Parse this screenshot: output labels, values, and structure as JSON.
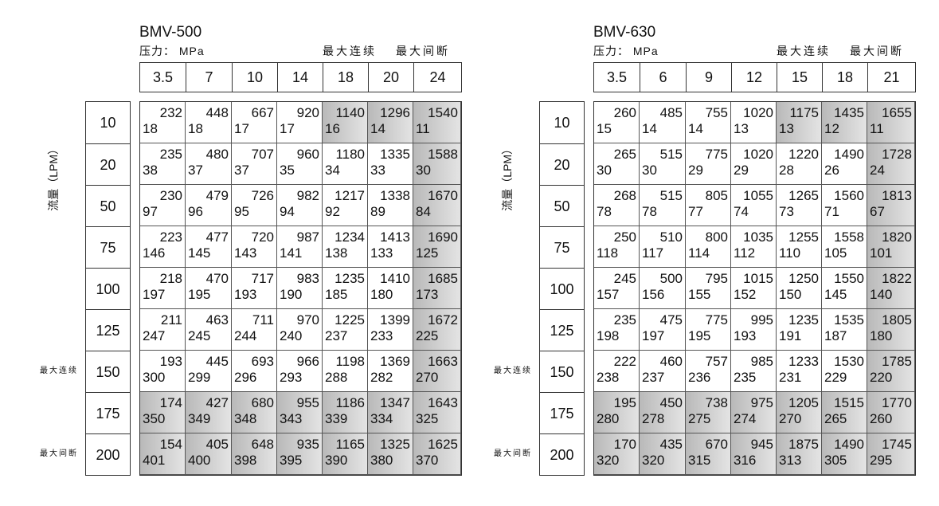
{
  "flow_axis_label": "流量（LPM）",
  "max_continuous_label": "最大连续",
  "max_intermittent_label": "最大间断",
  "tables": [
    {
      "model": "BMV-500",
      "pressure_label": "压力： MPa",
      "pressures": [
        "3.5",
        "7",
        "10",
        "14",
        "18",
        "20",
        "24"
      ],
      "flows": [
        "10",
        "20",
        "50",
        "75",
        "100",
        "125",
        "150",
        "175",
        "200"
      ],
      "cells": [
        [
          [
            "232",
            "18"
          ],
          [
            "448",
            "18"
          ],
          [
            "667",
            "17"
          ],
          [
            "920",
            "17"
          ],
          [
            "1140",
            "16"
          ],
          [
            "1296",
            "14"
          ],
          [
            "1540",
            "11"
          ]
        ],
        [
          [
            "235",
            "38"
          ],
          [
            "480",
            "37"
          ],
          [
            "707",
            "37"
          ],
          [
            "960",
            "35"
          ],
          [
            "1180",
            "34"
          ],
          [
            "1335",
            "33"
          ],
          [
            "1588",
            "30"
          ]
        ],
        [
          [
            "230",
            "97"
          ],
          [
            "479",
            "96"
          ],
          [
            "726",
            "95"
          ],
          [
            "982",
            "94"
          ],
          [
            "1217",
            "92"
          ],
          [
            "1338",
            "89"
          ],
          [
            "1670",
            "84"
          ]
        ],
        [
          [
            "223",
            "146"
          ],
          [
            "477",
            "145"
          ],
          [
            "720",
            "143"
          ],
          [
            "987",
            "141"
          ],
          [
            "1234",
            "138"
          ],
          [
            "1413",
            "133"
          ],
          [
            "1690",
            "125"
          ]
        ],
        [
          [
            "218",
            "197"
          ],
          [
            "470",
            "195"
          ],
          [
            "717",
            "193"
          ],
          [
            "983",
            "190"
          ],
          [
            "1235",
            "185"
          ],
          [
            "1410",
            "180"
          ],
          [
            "1685",
            "173"
          ]
        ],
        [
          [
            "211",
            "247"
          ],
          [
            "463",
            "245"
          ],
          [
            "711",
            "244"
          ],
          [
            "970",
            "240"
          ],
          [
            "1225",
            "237"
          ],
          [
            "1399",
            "233"
          ],
          [
            "1672",
            "225"
          ]
        ],
        [
          [
            "193",
            "300"
          ],
          [
            "445",
            "299"
          ],
          [
            "693",
            "296"
          ],
          [
            "966",
            "293"
          ],
          [
            "1198",
            "288"
          ],
          [
            "1369",
            "282"
          ],
          [
            "1663",
            "270"
          ]
        ],
        [
          [
            "174",
            "350"
          ],
          [
            "427",
            "349"
          ],
          [
            "680",
            "348"
          ],
          [
            "955",
            "343"
          ],
          [
            "1186",
            "339"
          ],
          [
            "1347",
            "334"
          ],
          [
            "1643",
            "325"
          ]
        ],
        [
          [
            "154",
            "401"
          ],
          [
            "405",
            "400"
          ],
          [
            "648",
            "398"
          ],
          [
            "935",
            "395"
          ],
          [
            "1165",
            "390"
          ],
          [
            "1325",
            "380"
          ],
          [
            "1625",
            "370"
          ]
        ]
      ]
    },
    {
      "model": "BMV-630",
      "pressure_label": "压力： MPa",
      "pressures": [
        "3.5",
        "6",
        "9",
        "12",
        "15",
        "18",
        "21"
      ],
      "flows": [
        "10",
        "20",
        "50",
        "75",
        "100",
        "125",
        "150",
        "175",
        "200"
      ],
      "cells": [
        [
          [
            "260",
            "15"
          ],
          [
            "485",
            "14"
          ],
          [
            "755",
            "14"
          ],
          [
            "1020",
            "13"
          ],
          [
            "1175",
            "13"
          ],
          [
            "1435",
            "12"
          ],
          [
            "1655",
            "11"
          ]
        ],
        [
          [
            "265",
            "30"
          ],
          [
            "515",
            "30"
          ],
          [
            "775",
            "29"
          ],
          [
            "1020",
            "29"
          ],
          [
            "1220",
            "28"
          ],
          [
            "1490",
            "26"
          ],
          [
            "1728",
            "24"
          ]
        ],
        [
          [
            "268",
            "78"
          ],
          [
            "515",
            "78"
          ],
          [
            "805",
            "77"
          ],
          [
            "1055",
            "74"
          ],
          [
            "1265",
            "73"
          ],
          [
            "1560",
            "71"
          ],
          [
            "1813",
            "67"
          ]
        ],
        [
          [
            "250",
            "118"
          ],
          [
            "510",
            "117"
          ],
          [
            "800",
            "114"
          ],
          [
            "1035",
            "112"
          ],
          [
            "1255",
            "110"
          ],
          [
            "1558",
            "105"
          ],
          [
            "1820",
            "101"
          ]
        ],
        [
          [
            "245",
            "157"
          ],
          [
            "500",
            "156"
          ],
          [
            "795",
            "155"
          ],
          [
            "1015",
            "152"
          ],
          [
            "1250",
            "150"
          ],
          [
            "1550",
            "145"
          ],
          [
            "1822",
            "140"
          ]
        ],
        [
          [
            "235",
            "198"
          ],
          [
            "475",
            "197"
          ],
          [
            "775",
            "195"
          ],
          [
            "995",
            "193"
          ],
          [
            "1235",
            "191"
          ],
          [
            "1535",
            "187"
          ],
          [
            "1805",
            "180"
          ]
        ],
        [
          [
            "222",
            "238"
          ],
          [
            "460",
            "237"
          ],
          [
            "757",
            "236"
          ],
          [
            "985",
            "235"
          ],
          [
            "1233",
            "231"
          ],
          [
            "1530",
            "229"
          ],
          [
            "1785",
            "220"
          ]
        ],
        [
          [
            "195",
            "280"
          ],
          [
            "450",
            "278"
          ],
          [
            "738",
            "275"
          ],
          [
            "975",
            "274"
          ],
          [
            "1205",
            "270"
          ],
          [
            "1515",
            "265"
          ],
          [
            "1770",
            "260"
          ]
        ],
        [
          [
            "170",
            "320"
          ],
          [
            "435",
            "320"
          ],
          [
            "670",
            "315"
          ],
          [
            "945",
            "316"
          ],
          [
            "1875",
            "313"
          ],
          [
            "1490",
            "305"
          ],
          [
            "1745",
            "295"
          ]
        ]
      ]
    }
  ],
  "shade_color": "#b9b9b9"
}
